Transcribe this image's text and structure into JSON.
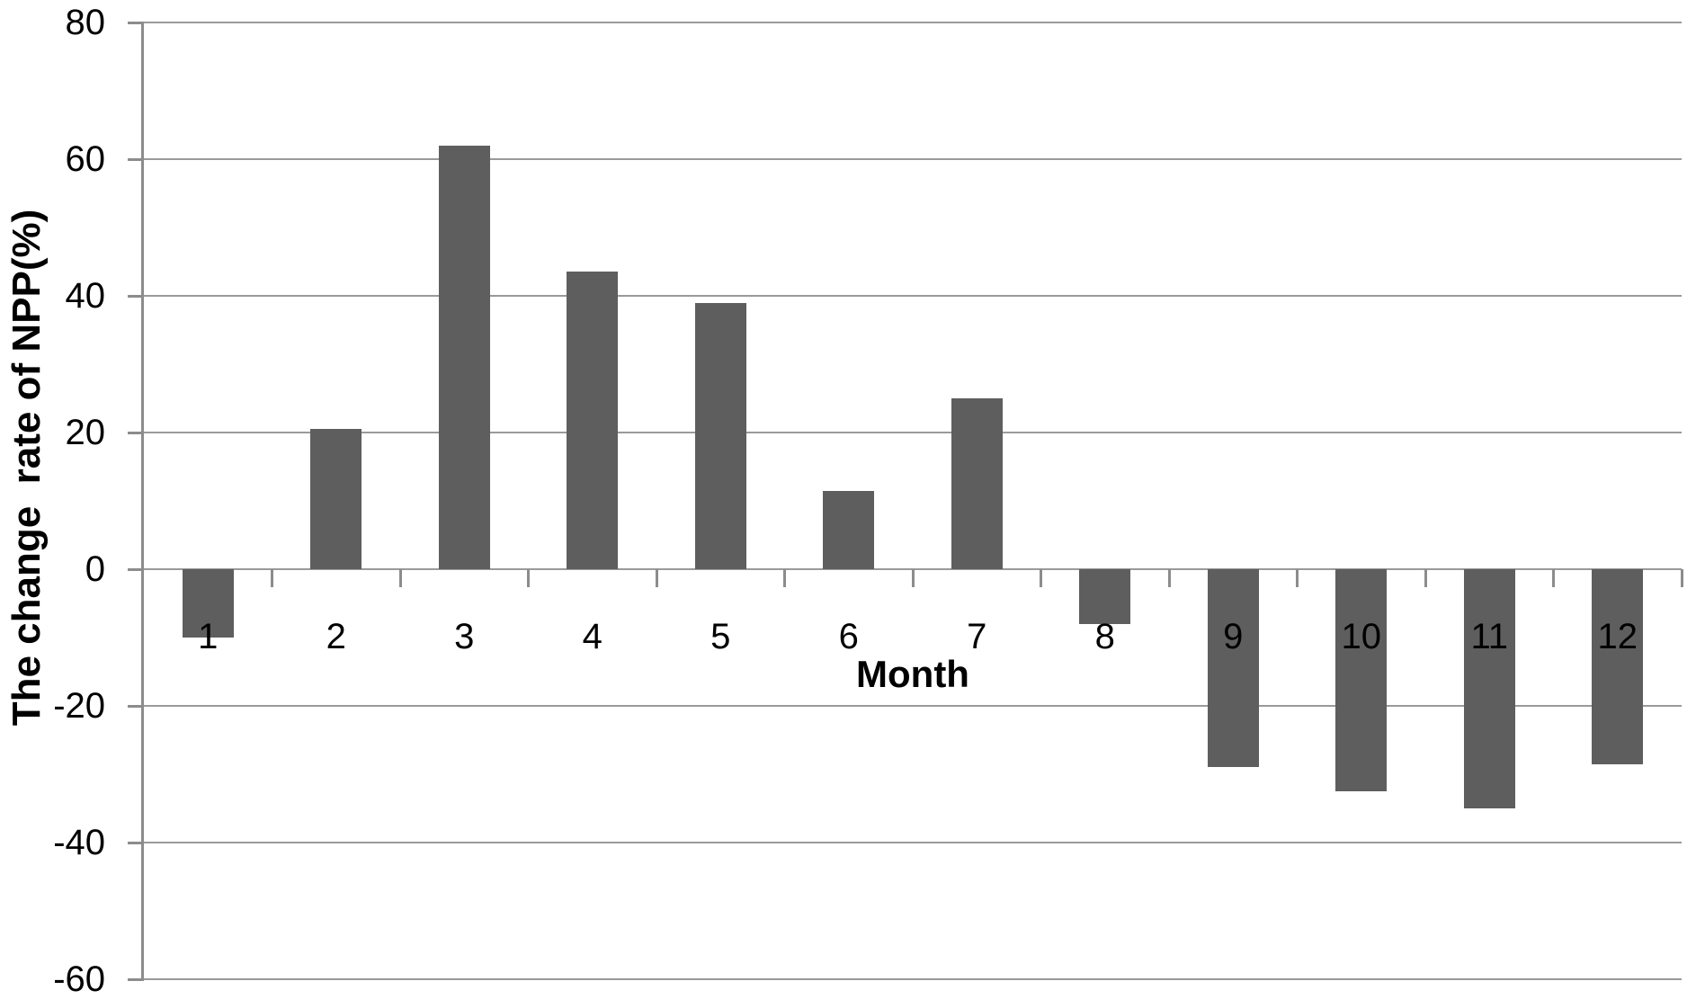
{
  "chart_data": {
    "type": "bar",
    "title": "",
    "xlabel": "Month",
    "ylabel": "The change  rate of NPP(%)",
    "categories": [
      "1",
      "2",
      "3",
      "4",
      "5",
      "6",
      "7",
      "8",
      "9",
      "10",
      "11",
      "12"
    ],
    "values": [
      -10,
      20.5,
      62,
      43.5,
      39,
      11.5,
      25,
      -8,
      -29,
      -32.5,
      -35,
      -28.5
    ],
    "yticks": [
      80,
      60,
      40,
      20,
      0,
      -20,
      -40,
      -60
    ],
    "ylim": [
      -60,
      80
    ],
    "grid": "horizontal",
    "legend": "none",
    "bar_color": "#5e5e5e",
    "gridline_color": "#9a9a9a",
    "axis_color": "#8c8c8c",
    "text_color": "#000000"
  }
}
